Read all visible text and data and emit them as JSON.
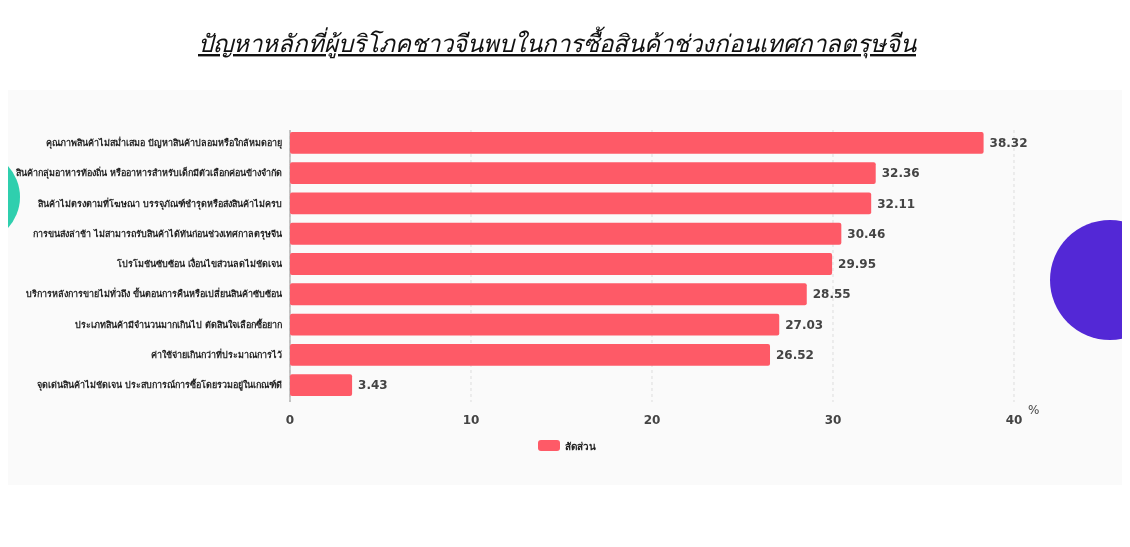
{
  "chart_data": {
    "type": "bar",
    "orientation": "horizontal",
    "title": "ปัญหาหลักที่ผู้บริโภคชาวจีนพบในการซื้อสินค้าช่วงก่อนเทศกาลตรุษจีน",
    "xlabel": "%",
    "categories": [
      "คุณภาพสินค้าไม่สม่ำเสมอ ปัญหาสินค้าปลอมหรือใกล้หมดอายุ",
      "สินค้ากลุ่มอาหารท้องถิ่น หรืออาหารสำหรับเด็กมีตัวเลือกค่อนข้างจำกัด",
      "สินค้าไม่ตรงตามที่โฆษณา บรรจุภัณฑ์ชำรุดหรือส่งสินค้าไม่ครบ",
      "การขนส่งล่าช้า ไม่สามารถรับสินค้าได้ทันก่อนช่วงเทศกาลตรุษจีน",
      "โปรโมชันซับซ้อน เงื่อนไขส่วนลดไม่ชัดเจน",
      "บริการหลังการขายไม่ทั่วถึง ขั้นตอนการคืนหรือเปลี่ยนสินค้าซับซ้อน",
      "ประเภทสินค้ามีจำนวนมากเกินไป ตัดสินใจเลือกซื้อยาก",
      "ค่าใช้จ่ายเกินกว่าที่ประมาณการไว้",
      "จุดเด่นสินค้าไม่ชัดเจน ประสบการณ์การซื้อโดยรวมอยู่ในเกณฑ์ดี"
    ],
    "series": [
      {
        "name": "สัดส่วน",
        "color": "#fe5a67",
        "values": [
          38.32,
          32.36,
          32.11,
          30.46,
          29.95,
          28.55,
          27.03,
          26.52,
          3.43
        ]
      }
    ],
    "xlim": [
      0,
      40
    ],
    "xticks": [
      0,
      10,
      20,
      30,
      40
    ],
    "grid": "x",
    "legend": "bottom",
    "data_labels": true
  }
}
